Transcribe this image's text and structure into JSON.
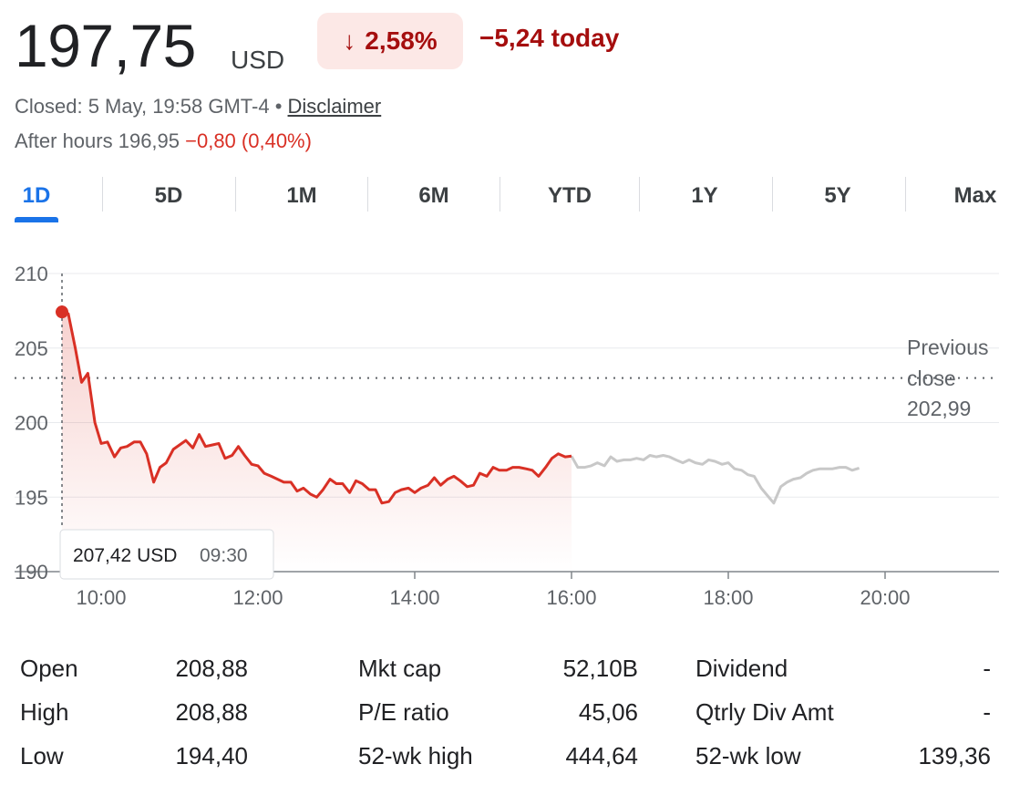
{
  "header": {
    "price": "197,75",
    "currency": "USD",
    "change_arrow": "↓",
    "change_percent": "2,58%",
    "change_today": "−5,24 today",
    "status_prefix": "Closed: 5 May, 19:58 GMT-4 • ",
    "disclaimer": "Disclaimer",
    "after_hours_label": "After hours 196,95 ",
    "after_hours_change": "−0,80 (0,40%)"
  },
  "colors": {
    "negative": "#a50e0e",
    "line_regular": "#d93025",
    "line_extended": "#c8c8c8",
    "accent": "#1a73e8"
  },
  "tabs": [
    {
      "label": "1D",
      "active": true
    },
    {
      "label": "5D"
    },
    {
      "label": "1M"
    },
    {
      "label": "6M"
    },
    {
      "label": "YTD"
    },
    {
      "label": "1Y"
    },
    {
      "label": "5Y"
    },
    {
      "label": "Max"
    }
  ],
  "chart_data": {
    "type": "line",
    "xlim": [
      9.5,
      20.0
    ],
    "ylim": [
      190,
      210
    ],
    "yticks": [
      "210",
      "205",
      "200",
      "195",
      "190"
    ],
    "xticks": [
      "10:00",
      "12:00",
      "14:00",
      "16:00",
      "18:00",
      "20:00"
    ],
    "previous_close_label": [
      "Previous",
      "close",
      "202,99"
    ],
    "previous_close": 202.99,
    "tooltip": {
      "price": "207,42 USD",
      "time": "09:30"
    },
    "grid": true,
    "series": [
      {
        "session": "regular",
        "points": [
          [
            9.5,
            207.42
          ],
          [
            9.58,
            207.3
          ],
          [
            9.67,
            205.0
          ],
          [
            9.75,
            202.7
          ],
          [
            9.83,
            203.3
          ],
          [
            9.92,
            200.0
          ],
          [
            10.0,
            198.6
          ],
          [
            10.08,
            198.7
          ],
          [
            10.17,
            197.7
          ],
          [
            10.25,
            198.3
          ],
          [
            10.33,
            198.4
          ],
          [
            10.42,
            198.7
          ],
          [
            10.5,
            198.7
          ],
          [
            10.58,
            197.9
          ],
          [
            10.67,
            196.0
          ],
          [
            10.75,
            197.0
          ],
          [
            10.83,
            197.3
          ],
          [
            10.92,
            198.2
          ],
          [
            11.0,
            198.5
          ],
          [
            11.08,
            198.8
          ],
          [
            11.17,
            198.3
          ],
          [
            11.25,
            199.2
          ],
          [
            11.33,
            198.4
          ],
          [
            11.42,
            198.5
          ],
          [
            11.5,
            198.6
          ],
          [
            11.58,
            197.6
          ],
          [
            11.67,
            197.8
          ],
          [
            11.75,
            198.4
          ],
          [
            11.83,
            197.8
          ],
          [
            11.92,
            197.2
          ],
          [
            12.0,
            197.1
          ],
          [
            12.08,
            196.6
          ],
          [
            12.17,
            196.4
          ],
          [
            12.25,
            196.2
          ],
          [
            12.33,
            196.0
          ],
          [
            12.42,
            196.0
          ],
          [
            12.5,
            195.4
          ],
          [
            12.58,
            195.6
          ],
          [
            12.67,
            195.2
          ],
          [
            12.75,
            195.0
          ],
          [
            12.83,
            195.5
          ],
          [
            12.92,
            196.2
          ],
          [
            13.0,
            195.9
          ],
          [
            13.08,
            195.9
          ],
          [
            13.17,
            195.3
          ],
          [
            13.25,
            196.1
          ],
          [
            13.33,
            195.9
          ],
          [
            13.42,
            195.5
          ],
          [
            13.5,
            195.5
          ],
          [
            13.58,
            194.6
          ],
          [
            13.67,
            194.7
          ],
          [
            13.75,
            195.3
          ],
          [
            13.83,
            195.5
          ],
          [
            13.92,
            195.6
          ],
          [
            14.0,
            195.3
          ],
          [
            14.08,
            195.6
          ],
          [
            14.17,
            195.8
          ],
          [
            14.25,
            196.3
          ],
          [
            14.33,
            195.8
          ],
          [
            14.42,
            196.2
          ],
          [
            14.5,
            196.4
          ],
          [
            14.58,
            196.1
          ],
          [
            14.67,
            195.7
          ],
          [
            14.75,
            195.8
          ],
          [
            14.83,
            196.6
          ],
          [
            14.92,
            196.4
          ],
          [
            15.0,
            197.0
          ],
          [
            15.08,
            196.8
          ],
          [
            15.17,
            196.8
          ],
          [
            15.25,
            197.0
          ],
          [
            15.33,
            197.0
          ],
          [
            15.42,
            196.9
          ],
          [
            15.5,
            196.8
          ],
          [
            15.58,
            196.4
          ],
          [
            15.67,
            197.0
          ],
          [
            15.75,
            197.6
          ],
          [
            15.83,
            197.9
          ],
          [
            15.92,
            197.7
          ],
          [
            16.0,
            197.75
          ]
        ]
      },
      {
        "session": "extended",
        "points": [
          [
            16.0,
            197.75
          ],
          [
            16.08,
            197.0
          ],
          [
            16.17,
            197.0
          ],
          [
            16.25,
            197.1
          ],
          [
            16.33,
            197.3
          ],
          [
            16.42,
            197.1
          ],
          [
            16.5,
            197.7
          ],
          [
            16.58,
            197.4
          ],
          [
            16.67,
            197.5
          ],
          [
            16.75,
            197.5
          ],
          [
            16.83,
            197.6
          ],
          [
            16.92,
            197.5
          ],
          [
            17.0,
            197.8
          ],
          [
            17.08,
            197.7
          ],
          [
            17.17,
            197.8
          ],
          [
            17.25,
            197.7
          ],
          [
            17.33,
            197.5
          ],
          [
            17.42,
            197.3
          ],
          [
            17.5,
            197.5
          ],
          [
            17.58,
            197.3
          ],
          [
            17.67,
            197.2
          ],
          [
            17.75,
            197.5
          ],
          [
            17.83,
            197.4
          ],
          [
            17.92,
            197.2
          ],
          [
            18.0,
            197.3
          ],
          [
            18.08,
            196.9
          ],
          [
            18.17,
            196.8
          ],
          [
            18.25,
            196.5
          ],
          [
            18.33,
            196.4
          ],
          [
            18.42,
            195.6
          ],
          [
            18.5,
            195.1
          ],
          [
            18.58,
            194.6
          ],
          [
            18.67,
            195.7
          ],
          [
            18.75,
            196.0
          ],
          [
            18.83,
            196.2
          ],
          [
            18.92,
            196.3
          ],
          [
            19.0,
            196.6
          ],
          [
            19.08,
            196.8
          ],
          [
            19.17,
            196.9
          ],
          [
            19.25,
            196.9
          ],
          [
            19.33,
            196.9
          ],
          [
            19.42,
            197.0
          ],
          [
            19.5,
            197.0
          ],
          [
            19.58,
            196.8
          ],
          [
            19.67,
            196.95
          ]
        ]
      }
    ]
  },
  "stats": [
    {
      "label": "Open",
      "value": "208,88"
    },
    {
      "label": "High",
      "value": "208,88"
    },
    {
      "label": "Low",
      "value": "194,40"
    },
    {
      "label": "Mkt cap",
      "value": "52,10B"
    },
    {
      "label": "P/E ratio",
      "value": "45,06"
    },
    {
      "label": "52-wk high",
      "value": "444,64"
    },
    {
      "label": "Dividend",
      "value": "-"
    },
    {
      "label": "Qtrly Div Amt",
      "value": "-"
    },
    {
      "label": "52-wk low",
      "value": "139,36"
    }
  ]
}
